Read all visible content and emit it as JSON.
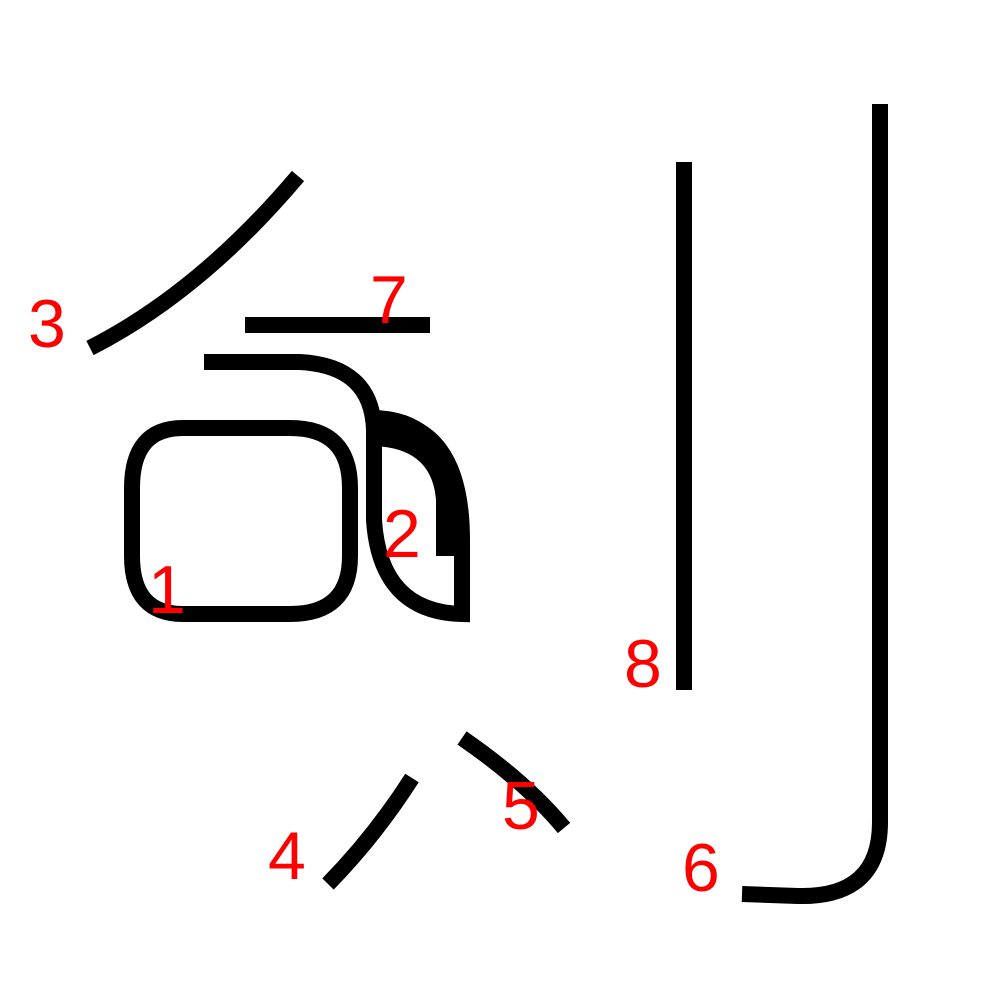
{
  "figure": {
    "stroke_color": "#000000",
    "label_color": "#ff0000",
    "strokes": [
      {
        "number": "1",
        "shape": "rounded-box"
      },
      {
        "number": "2",
        "shape": "hooked-curve"
      },
      {
        "number": "3",
        "shape": "left-falling"
      },
      {
        "number": "4",
        "shape": "left-falling-dot"
      },
      {
        "number": "5",
        "shape": "right-falling-dot"
      },
      {
        "number": "6",
        "shape": "vertical-hook"
      },
      {
        "number": "7",
        "shape": "horizontal"
      },
      {
        "number": "8",
        "shape": "vertical"
      }
    ]
  }
}
